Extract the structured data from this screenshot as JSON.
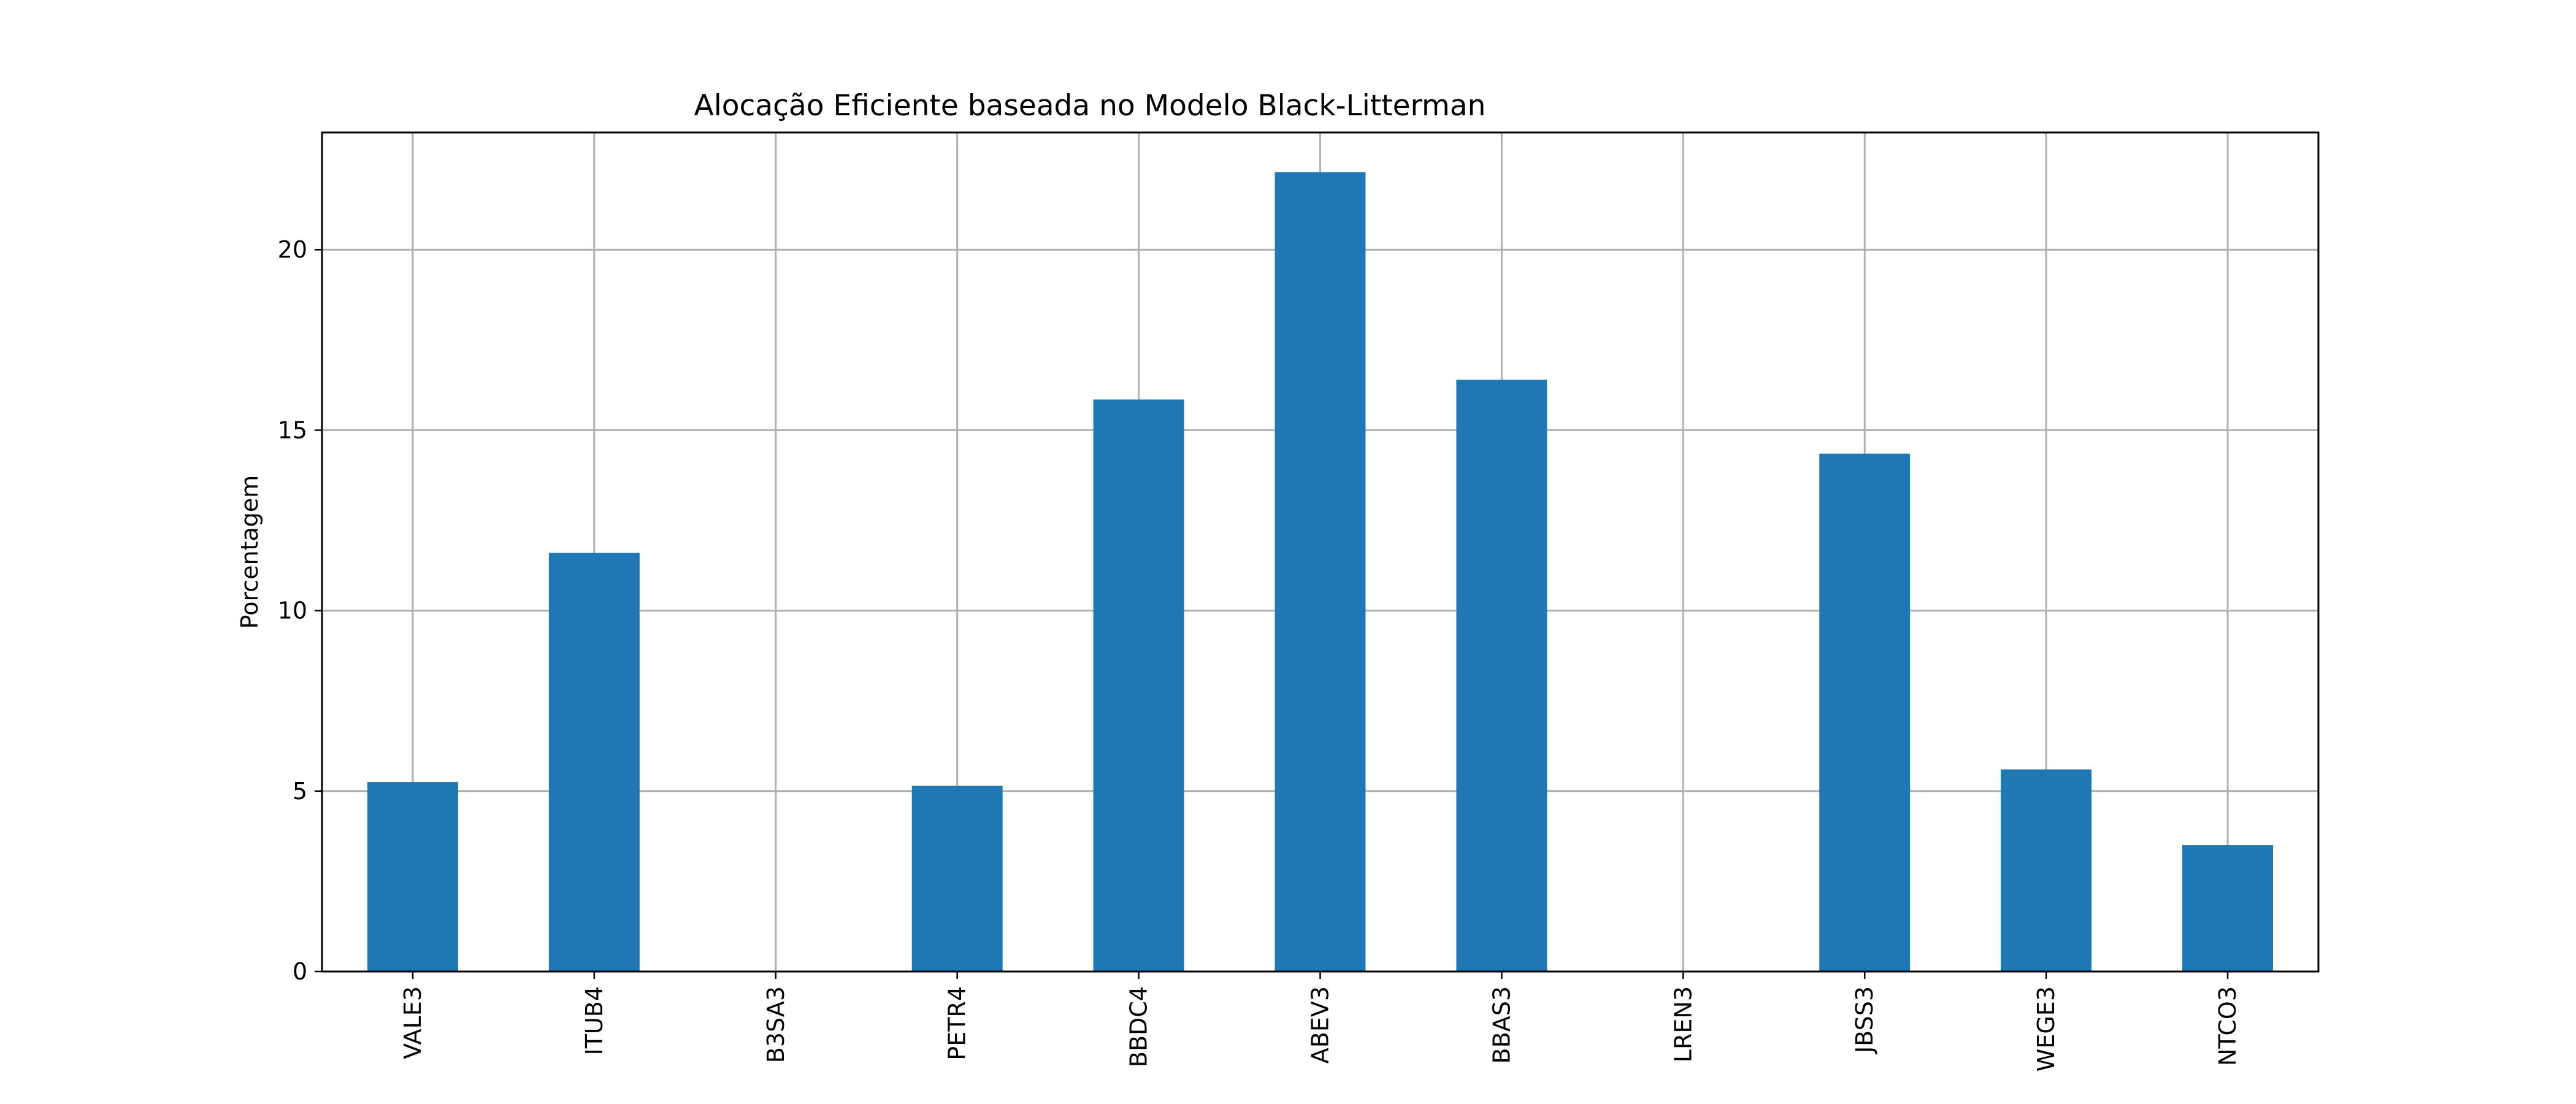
{
  "chart_data": {
    "type": "bar",
    "title": "Alocação Eficiente baseada no Modelo Black-Litterman",
    "xlabel": "",
    "ylabel": "Porcentagem",
    "categories": [
      "VALE3",
      "ITUB4",
      "B3SA3",
      "PETR4",
      "BBDC4",
      "ABEV3",
      "BBAS3",
      "LREN3",
      "JBSS3",
      "WEGE3",
      "NTCO3"
    ],
    "values": [
      5.25,
      11.6,
      0,
      5.15,
      15.85,
      22.15,
      16.4,
      0,
      14.35,
      5.6,
      3.5
    ],
    "yticks": [
      0,
      5,
      10,
      15,
      20
    ],
    "ylim": [
      0,
      23.25
    ],
    "grid": true,
    "bar_color": "#1f77b4"
  }
}
